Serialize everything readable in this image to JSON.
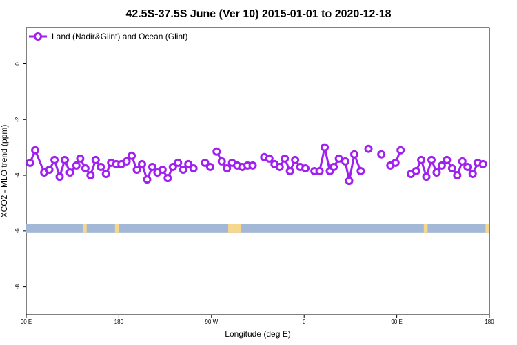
{
  "chart_data": {
    "type": "line",
    "title": "42.5S-37.5S June (Ver 10)   2015-01-01 to 2020-12-18",
    "xlabel": "Longitude (deg E)",
    "ylabel": "XCO2 - MLO trend (ppm)",
    "xlim": [
      90,
      450
    ],
    "ylim": [
      -9.0,
      1.3
    ],
    "x_ticks": [
      {
        "value": 90,
        "label": "90 E"
      },
      {
        "value": 162,
        "label": "180"
      },
      {
        "value": 234,
        "label": "90 W"
      },
      {
        "value": 306,
        "label": "0"
      },
      {
        "value": 378,
        "label": "90 E"
      },
      {
        "value": 450,
        "label": "180"
      }
    ],
    "y_ticks": [
      {
        "value": 0,
        "label": "0"
      },
      {
        "value": -2,
        "label": "-2"
      },
      {
        "value": -4,
        "label": "-4"
      },
      {
        "value": -6,
        "label": "-6"
      },
      {
        "value": -8,
        "label": "-8"
      }
    ],
    "grid": false,
    "legend_position": "top-left",
    "series": [
      {
        "name": "Land (Nadir&Glint) and Ocean (Glint)",
        "color": "#a020f0",
        "segments": [
          [
            [
              93,
              -3.55
            ],
            [
              97,
              -3.1
            ],
            [
              104,
              -3.9
            ],
            [
              108,
              -3.8
            ],
            [
              112,
              -3.45
            ],
            [
              116,
              -4.05
            ],
            [
              120,
              -3.45
            ],
            [
              124,
              -3.9
            ],
            [
              129,
              -3.65
            ],
            [
              132,
              -3.4
            ],
            [
              136,
              -3.75
            ],
            [
              140,
              -4.0
            ],
            [
              144,
              -3.45
            ],
            [
              148,
              -3.7
            ],
            [
              152,
              -3.95
            ],
            [
              156,
              -3.55
            ],
            [
              160,
              -3.6
            ],
            [
              164,
              -3.6
            ],
            [
              168,
              -3.5
            ],
            [
              172,
              -3.3
            ],
            [
              176,
              -3.8
            ],
            [
              180,
              -3.6
            ],
            [
              184,
              -4.15
            ],
            [
              188,
              -3.7
            ],
            [
              192,
              -3.9
            ],
            [
              196,
              -3.8
            ],
            [
              200,
              -4.1
            ],
            [
              204,
              -3.7
            ],
            [
              208,
              -3.55
            ],
            [
              212,
              -3.8
            ],
            [
              216,
              -3.6
            ],
            [
              220,
              -3.75
            ]
          ],
          [
            [
              229,
              -3.55
            ],
            [
              233,
              -3.7
            ]
          ],
          [
            [
              238,
              -3.15
            ],
            [
              242,
              -3.5
            ],
            [
              246,
              -3.75
            ],
            [
              250,
              -3.55
            ],
            [
              254,
              -3.65
            ],
            [
              258,
              -3.7
            ],
            [
              262,
              -3.65
            ],
            [
              266,
              -3.65
            ]
          ],
          [
            [
              275,
              -3.35
            ],
            [
              279,
              -3.4
            ],
            [
              283,
              -3.6
            ],
            [
              287,
              -3.7
            ],
            [
              291,
              -3.4
            ],
            [
              295,
              -3.85
            ],
            [
              299,
              -3.45
            ],
            [
              303,
              -3.7
            ],
            [
              307,
              -3.75
            ]
          ],
          [
            [
              314,
              -3.85
            ],
            [
              318,
              -3.85
            ],
            [
              322,
              -3.0
            ],
            [
              326,
              -3.85
            ],
            [
              329,
              -3.7
            ],
            [
              333,
              -3.4
            ],
            [
              338,
              -3.5
            ],
            [
              341,
              -4.2
            ],
            [
              345,
              -3.25
            ],
            [
              350,
              -3.85
            ]
          ],
          [
            [
              356,
              -3.05
            ]
          ],
          [
            [
              366,
              -3.25
            ]
          ],
          [
            [
              373,
              -3.65
            ],
            [
              377,
              -3.55
            ],
            [
              381,
              -3.1
            ]
          ],
          [
            [
              389,
              -3.95
            ],
            [
              393,
              -3.85
            ],
            [
              397,
              -3.45
            ],
            [
              401,
              -4.05
            ],
            [
              405,
              -3.45
            ],
            [
              409,
              -3.9
            ],
            [
              413,
              -3.65
            ],
            [
              417,
              -3.45
            ],
            [
              421,
              -3.75
            ],
            [
              425,
              -4.0
            ],
            [
              429,
              -3.5
            ],
            [
              433,
              -3.7
            ],
            [
              437,
              -3.95
            ],
            [
              441,
              -3.55
            ],
            [
              445,
              -3.6
            ]
          ]
        ]
      }
    ],
    "land_ocean_strip": {
      "y_range": [
        -6.05,
        -5.75
      ],
      "ocean_color": "#a2b8d6",
      "land_color": "#f5d78e",
      "land_spans": [
        [
          134,
          137
        ],
        [
          159,
          162
        ],
        [
          247,
          257
        ],
        [
          399,
          402
        ],
        [
          447,
          450
        ]
      ]
    }
  }
}
